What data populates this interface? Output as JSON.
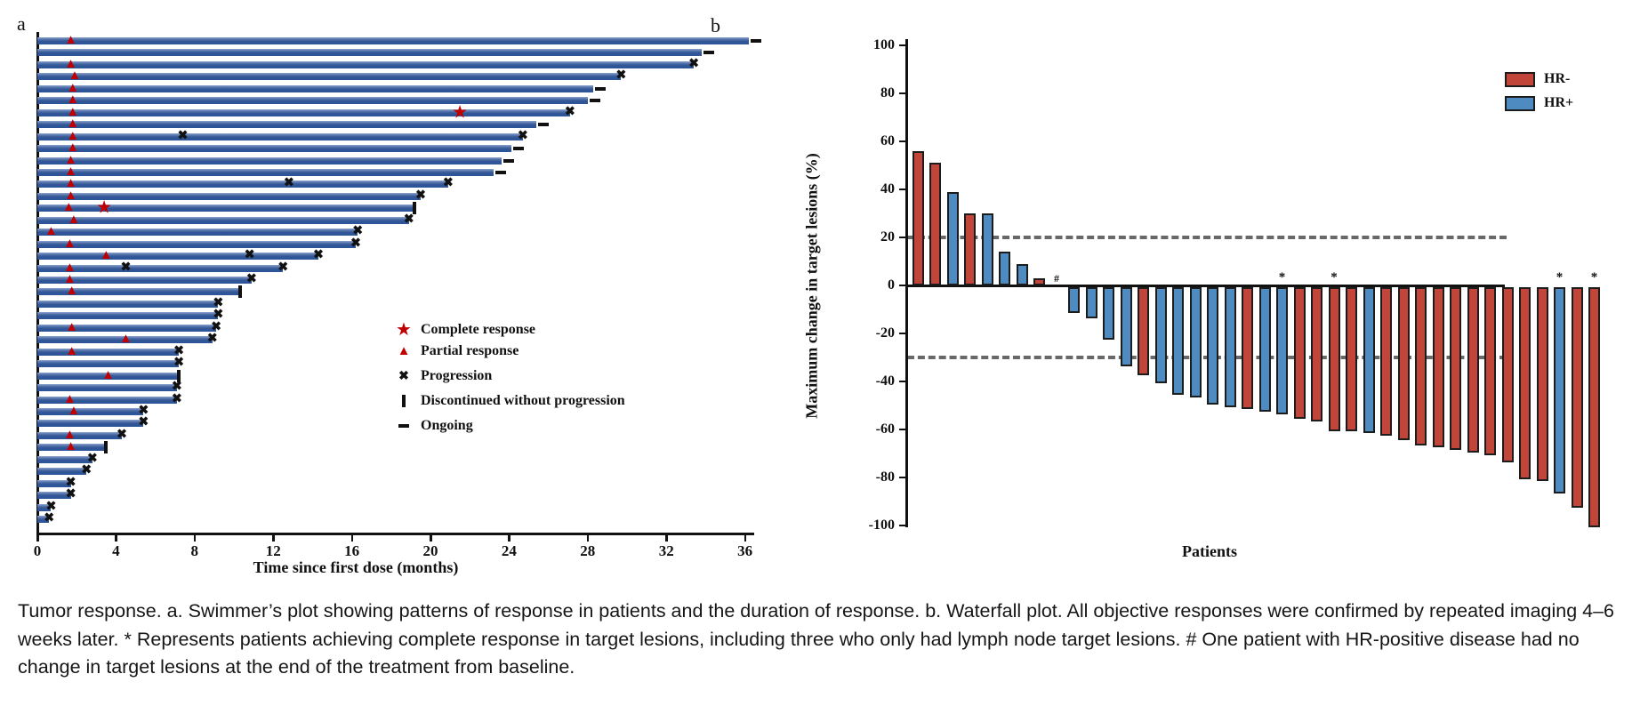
{
  "figure": {
    "panel_a_letter": "a",
    "panel_b_letter": "b",
    "caption": "Tumor response. a. Swimmer’s plot showing patterns of response in patients and the duration of response. b. Waterfall plot. All objective responses were confirmed by repeated imaging 4–6 weeks later. * Represents patients achieving complete response in target lesions, including three who only had lymph node target lesions. # One patient with HR-positive disease had no change in target lesions at the end of the treatment from baseline."
  },
  "colors": {
    "swimmer_bar": "#2e5597",
    "response_red": "#c00000",
    "hr_neg_red": "#c2453a",
    "hr_pos_blue": "#4e8bc0",
    "bar_outline": "#1c1c1c",
    "dash_gray": "#686868"
  },
  "chart_data": [
    {
      "type": "bar",
      "title": "Swimmer plot",
      "xlabel": "Time since first dose (months)",
      "x_ticks": [
        0,
        4,
        8,
        12,
        16,
        20,
        24,
        28,
        32,
        36
      ],
      "xlim": [
        0,
        36.5
      ],
      "legend": [
        {
          "symbol": "star",
          "label": "Complete response"
        },
        {
          "symbol": "triangle",
          "label": "Partial response"
        },
        {
          "symbol": "x",
          "label": "Progression"
        },
        {
          "symbol": "bar-vertical",
          "label": "Discontinued without progression"
        },
        {
          "symbol": "dash",
          "label": "Ongoing"
        }
      ],
      "bars_months": [
        {
          "len": 36.2,
          "tri": 1.7,
          "end": "ongoing"
        },
        {
          "len": 33.8,
          "end": "ongoing"
        },
        {
          "len": 33.4,
          "tri": 1.7,
          "end": "prog"
        },
        {
          "len": 29.7,
          "tri": 1.9,
          "end": "prog"
        },
        {
          "len": 28.3,
          "tri": 1.8,
          "end": "ongoing"
        },
        {
          "len": 28.0,
          "tri": 1.8,
          "end": "ongoing"
        },
        {
          "len": 27.1,
          "tri": 1.8,
          "star": 21.5,
          "end": "prog"
        },
        {
          "len": 25.4,
          "tri": 1.8,
          "end": "ongoing"
        },
        {
          "len": 24.7,
          "tri": 1.8,
          "prog_mid": 7.4,
          "end": "prog"
        },
        {
          "len": 24.1,
          "tri": 1.8,
          "end": "ongoing"
        },
        {
          "len": 23.6,
          "tri": 1.7,
          "end": "ongoing"
        },
        {
          "len": 23.2,
          "tri": 1.7,
          "end": "ongoing"
        },
        {
          "len": 20.9,
          "tri": 1.7,
          "prog_mid": 12.8,
          "end": "prog"
        },
        {
          "len": 19.5,
          "tri": 1.7,
          "end": "prog"
        },
        {
          "len": 19.2,
          "tri": 1.6,
          "star": 3.4,
          "end": "disc"
        },
        {
          "len": 18.9,
          "tri": 1.85,
          "end": "prog"
        },
        {
          "len": 16.3,
          "tri": 0.7,
          "end": "prog"
        },
        {
          "len": 16.2,
          "tri": 1.65,
          "end": "prog"
        },
        {
          "len": 14.3,
          "tri": 3.5,
          "prog_mid": 10.8,
          "end": "prog"
        },
        {
          "len": 12.5,
          "tri": 1.65,
          "prog_mid": 4.5,
          "end": "prog"
        },
        {
          "len": 10.9,
          "tri": 1.65,
          "end": "prog"
        },
        {
          "len": 10.3,
          "tri": 1.75,
          "end": "disc"
        },
        {
          "len": 9.2,
          "end": "prog"
        },
        {
          "len": 9.2,
          "end": "prog"
        },
        {
          "len": 9.1,
          "tri": 1.75,
          "end": "prog"
        },
        {
          "len": 8.9,
          "tri": 4.5,
          "end": "prog"
        },
        {
          "len": 7.2,
          "tri": 1.75,
          "end": "prog"
        },
        {
          "len": 7.2,
          "end": "prog"
        },
        {
          "len": 7.2,
          "tri": 3.6,
          "end": "disc"
        },
        {
          "len": 7.1,
          "end": "prog"
        },
        {
          "len": 7.1,
          "tri": 1.65,
          "end": "prog"
        },
        {
          "len": 5.4,
          "tri": 1.85,
          "end": "prog"
        },
        {
          "len": 5.4,
          "end": "prog"
        },
        {
          "len": 4.3,
          "tri": 1.65,
          "end": "prog"
        },
        {
          "len": 3.5,
          "tri": 1.7,
          "end": "disc"
        },
        {
          "len": 2.8,
          "end": "prog"
        },
        {
          "len": 2.5,
          "end": "prog"
        },
        {
          "len": 1.7,
          "end": "prog"
        },
        {
          "len": 1.7,
          "end": "prog"
        },
        {
          "len": 0.7,
          "end": "prog"
        },
        {
          "len": 0.6,
          "end": "prog"
        }
      ]
    },
    {
      "type": "bar",
      "title": "Waterfall plot",
      "xlabel": "Patients",
      "ylabel": "Maximum change in target lesions (%)",
      "ylim": [
        -100,
        100
      ],
      "y_ticks": [
        100,
        80,
        60,
        40,
        20,
        0,
        -20,
        -40,
        -60,
        -80,
        -100
      ],
      "reference_lines": [
        20,
        -30
      ],
      "legend": [
        {
          "label": "HR-",
          "color_key": "hr_neg_red"
        },
        {
          "label": "HR+",
          "color_key": "hr_pos_blue"
        }
      ],
      "bars_pct": [
        {
          "v": 56,
          "g": "R"
        },
        {
          "v": 51,
          "g": "R"
        },
        {
          "v": 39,
          "g": "B"
        },
        {
          "v": 30,
          "g": "R"
        },
        {
          "v": 30,
          "g": "B"
        },
        {
          "v": 14,
          "g": "B"
        },
        {
          "v": 9,
          "g": "B"
        },
        {
          "v": 3,
          "g": "R"
        },
        {
          "v": 0,
          "g": "B",
          "hash": true
        },
        {
          "v": -11,
          "g": "B"
        },
        {
          "v": -13,
          "g": "B"
        },
        {
          "v": -22,
          "g": "B"
        },
        {
          "v": -33,
          "g": "B"
        },
        {
          "v": -37,
          "g": "R"
        },
        {
          "v": -40,
          "g": "B"
        },
        {
          "v": -45,
          "g": "B"
        },
        {
          "v": -46,
          "g": "B"
        },
        {
          "v": -49,
          "g": "B"
        },
        {
          "v": -50,
          "g": "B"
        },
        {
          "v": -51,
          "g": "R"
        },
        {
          "v": -52,
          "g": "B"
        },
        {
          "v": -53,
          "g": "B",
          "star": true
        },
        {
          "v": -55,
          "g": "R"
        },
        {
          "v": -56,
          "g": "R"
        },
        {
          "v": -60,
          "g": "R",
          "star": true
        },
        {
          "v": -60,
          "g": "R"
        },
        {
          "v": -61,
          "g": "B"
        },
        {
          "v": -62,
          "g": "R"
        },
        {
          "v": -64,
          "g": "R"
        },
        {
          "v": -66,
          "g": "R"
        },
        {
          "v": -67,
          "g": "R"
        },
        {
          "v": -68,
          "g": "R"
        },
        {
          "v": -69,
          "g": "R"
        },
        {
          "v": -70,
          "g": "R"
        },
        {
          "v": -73,
          "g": "R"
        },
        {
          "v": -80,
          "g": "R"
        },
        {
          "v": -81,
          "g": "R"
        },
        {
          "v": -86,
          "g": "B",
          "star": true
        },
        {
          "v": -92,
          "g": "R"
        },
        {
          "v": -100,
          "g": "R",
          "star": true
        }
      ]
    }
  ],
  "panel_a": {
    "xlabel": "Time since first dose (months)",
    "legend_labels": [
      "Complete response",
      "Partial response",
      "Progression",
      "Discontinued without progression",
      "Ongoing"
    ]
  },
  "panel_b": {
    "ylabel": "Maximum change in target lesions (%)",
    "xlabel": "Patients",
    "legend": [
      "HR-",
      "HR+"
    ]
  }
}
